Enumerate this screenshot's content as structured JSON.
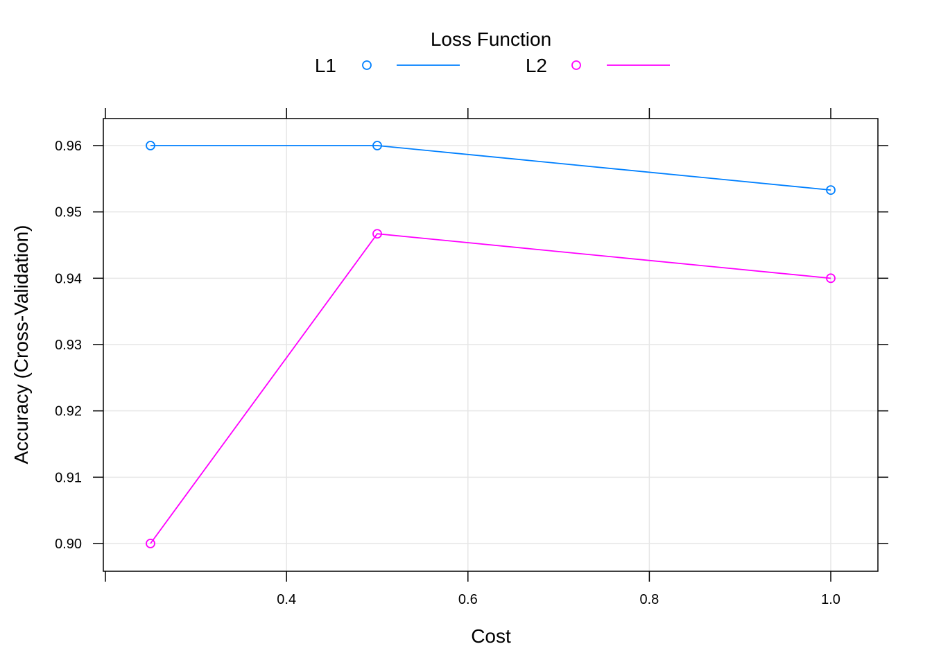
{
  "chart_data": {
    "type": "line",
    "title": "",
    "xlabel": "Cost",
    "ylabel": "Accuracy (Cross-Validation)",
    "xlim": [
      0.2,
      1.05
    ],
    "ylim": [
      0.896,
      0.964
    ],
    "x_ticks": [
      0.4,
      0.6,
      0.8,
      1.0
    ],
    "x_tick_labels": [
      "0.4",
      "0.6",
      "0.8",
      "1.0"
    ],
    "y_ticks": [
      0.9,
      0.91,
      0.92,
      0.93,
      0.94,
      0.95,
      0.96
    ],
    "y_tick_labels": [
      "0.90",
      "0.91",
      "0.92",
      "0.93",
      "0.94",
      "0.95",
      "0.96"
    ],
    "grid": true,
    "legend": {
      "title": "Loss Function",
      "placement": "top"
    },
    "series": [
      {
        "name": "L1",
        "color": "#0080ff",
        "x": [
          0.25,
          0.5,
          1.0
        ],
        "y": [
          0.96,
          0.96,
          0.9533
        ]
      },
      {
        "name": "L2",
        "color": "#ff00ff",
        "x": [
          0.25,
          0.5,
          1.0
        ],
        "y": [
          0.9,
          0.9467,
          0.94
        ]
      }
    ]
  }
}
